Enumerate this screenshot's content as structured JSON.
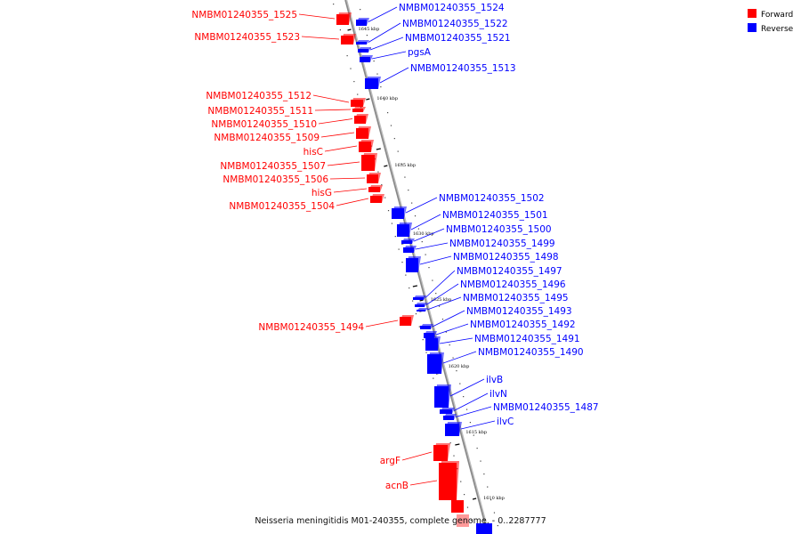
{
  "colors": {
    "forward": "#ff0000",
    "reverse": "#0000ff",
    "axis": "#888888"
  },
  "legend": {
    "forward_label": "Forward",
    "reverse_label": "Reverse"
  },
  "caption": "Neisseria meningitidis M01-240355, complete genome. - 0..2287777",
  "ticks": [
    {
      "label": "1645 kbp"
    },
    {
      "label": "1640 kbp"
    },
    {
      "label": "1635 kbp"
    },
    {
      "label": "1630 kbp"
    },
    {
      "label": "1625 kbp"
    },
    {
      "label": "1620 kbp"
    },
    {
      "label": "1615 kbp"
    },
    {
      "label": "1610 kbp"
    }
  ],
  "genes": [
    {
      "name": "NMBM01240355_1525",
      "strand": "forward"
    },
    {
      "name": "NMBM01240355_1524",
      "strand": "reverse"
    },
    {
      "name": "NMBM01240355_1523",
      "strand": "forward"
    },
    {
      "name": "NMBM01240355_1522",
      "strand": "reverse"
    },
    {
      "name": "NMBM01240355_1521",
      "strand": "reverse"
    },
    {
      "name": "pgsA",
      "strand": "reverse"
    },
    {
      "name": "NMBM01240355_1513",
      "strand": "reverse"
    },
    {
      "name": "NMBM01240355_1512",
      "strand": "forward"
    },
    {
      "name": "NMBM01240355_1511",
      "strand": "forward"
    },
    {
      "name": "NMBM01240355_1510",
      "strand": "forward"
    },
    {
      "name": "NMBM01240355_1509",
      "strand": "forward"
    },
    {
      "name": "hisC",
      "strand": "forward"
    },
    {
      "name": "NMBM01240355_1507",
      "strand": "forward"
    },
    {
      "name": "NMBM01240355_1506",
      "strand": "forward"
    },
    {
      "name": "hisG",
      "strand": "forward"
    },
    {
      "name": "NMBM01240355_1504",
      "strand": "forward"
    },
    {
      "name": "NMBM01240355_1502",
      "strand": "reverse"
    },
    {
      "name": "NMBM01240355_1501",
      "strand": "reverse"
    },
    {
      "name": "NMBM01240355_1500",
      "strand": "reverse"
    },
    {
      "name": "NMBM01240355_1499",
      "strand": "reverse"
    },
    {
      "name": "NMBM01240355_1498",
      "strand": "reverse"
    },
    {
      "name": "NMBM01240355_1497",
      "strand": "reverse"
    },
    {
      "name": "NMBM01240355_1496",
      "strand": "reverse"
    },
    {
      "name": "NMBM01240355_1495",
      "strand": "reverse"
    },
    {
      "name": "NMBM01240355_1494",
      "strand": "forward"
    },
    {
      "name": "NMBM01240355_1493",
      "strand": "reverse"
    },
    {
      "name": "NMBM01240355_1492",
      "strand": "reverse"
    },
    {
      "name": "NMBM01240355_1491",
      "strand": "reverse"
    },
    {
      "name": "NMBM01240355_1490",
      "strand": "reverse"
    },
    {
      "name": "ilvB",
      "strand": "reverse"
    },
    {
      "name": "ilvN",
      "strand": "reverse"
    },
    {
      "name": "NMBM01240355_1487",
      "strand": "reverse"
    },
    {
      "name": "ilvC",
      "strand": "reverse"
    },
    {
      "name": "argF",
      "strand": "forward"
    },
    {
      "name": "acnB",
      "strand": "forward"
    }
  ]
}
